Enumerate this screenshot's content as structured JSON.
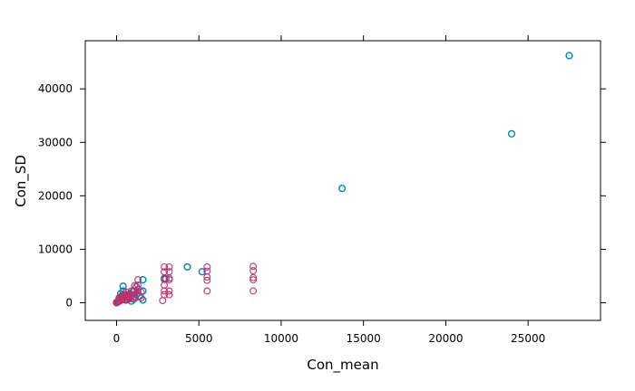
{
  "chart_data": {
    "type": "scatter",
    "title": "",
    "xlabel": "Con_mean",
    "ylabel": "Con_SD",
    "xlim": [
      -1900,
      29400
    ],
    "ylim": [
      -3300,
      49000
    ],
    "x_ticks": [
      0,
      5000,
      10000,
      15000,
      20000,
      25000
    ],
    "y_ticks": [
      0,
      10000,
      20000,
      30000,
      40000
    ],
    "x_tick_labels": [
      "0",
      "5000",
      "10000",
      "15000",
      "20000",
      "25000"
    ],
    "y_tick_labels": [
      "0",
      "10000",
      "20000",
      "30000",
      "40000"
    ],
    "grid": false,
    "legend": "none",
    "marker": "open-circle",
    "series": [
      {
        "color": "#0080c0",
        "points": [
          [
            27500,
            46200
          ],
          [
            24000,
            31600
          ],
          [
            13700,
            21400
          ],
          [
            4300,
            6700
          ],
          [
            5200,
            5800
          ],
          [
            1600,
            4300
          ],
          [
            1600,
            2200
          ],
          [
            1600,
            500
          ],
          [
            1200,
            1500
          ],
          [
            1000,
            2100
          ],
          [
            1200,
            3000
          ],
          [
            400,
            3100
          ],
          [
            400,
            2200
          ],
          [
            300,
            1200
          ],
          [
            200,
            800
          ],
          [
            150,
            400
          ],
          [
            100,
            200
          ],
          [
            50,
            100
          ],
          [
            0,
            0
          ],
          [
            30,
            50
          ],
          [
            600,
            500
          ],
          [
            700,
            1000
          ],
          [
            800,
            1600
          ],
          [
            1100,
            800
          ],
          [
            900,
            300
          ],
          [
            500,
            1500
          ],
          [
            250,
            1700
          ],
          [
            2900,
            4400
          ],
          [
            3000,
            4500
          ],
          [
            1400,
            1200
          ]
        ]
      },
      {
        "color": "#c0306a",
        "points": [
          [
            8300,
            6800
          ],
          [
            8300,
            6000
          ],
          [
            8300,
            4700
          ],
          [
            8300,
            4300
          ],
          [
            8300,
            2200
          ],
          [
            5500,
            6700
          ],
          [
            5500,
            5900
          ],
          [
            5500,
            4800
          ],
          [
            5500,
            4200
          ],
          [
            5500,
            2200
          ],
          [
            3200,
            6700
          ],
          [
            3200,
            5800
          ],
          [
            3200,
            4600
          ],
          [
            3200,
            4300
          ],
          [
            3200,
            2200
          ],
          [
            3200,
            1500
          ],
          [
            2900,
            6700
          ],
          [
            2900,
            5800
          ],
          [
            2900,
            4600
          ],
          [
            2900,
            3300
          ],
          [
            2900,
            2200
          ],
          [
            2900,
            1500
          ],
          [
            2800,
            400
          ],
          [
            1300,
            4300
          ],
          [
            1300,
            3300
          ],
          [
            1300,
            2500
          ],
          [
            1300,
            1800
          ],
          [
            1100,
            3200
          ],
          [
            1100,
            2200
          ],
          [
            1100,
            1200
          ],
          [
            1000,
            1500
          ],
          [
            1000,
            700
          ],
          [
            900,
            2200
          ],
          [
            900,
            1300
          ],
          [
            800,
            1700
          ],
          [
            800,
            900
          ],
          [
            700,
            1200
          ],
          [
            700,
            600
          ],
          [
            600,
            2000
          ],
          [
            600,
            1500
          ],
          [
            600,
            800
          ],
          [
            500,
            1200
          ],
          [
            500,
            500
          ],
          [
            400,
            1500
          ],
          [
            400,
            800
          ],
          [
            300,
            1000
          ],
          [
            300,
            500
          ],
          [
            200,
            600
          ],
          [
            200,
            300
          ],
          [
            150,
            900
          ],
          [
            100,
            400
          ],
          [
            50,
            200
          ],
          [
            0,
            100
          ],
          [
            1500,
            2000
          ],
          [
            1500,
            900
          ]
        ]
      }
    ]
  }
}
